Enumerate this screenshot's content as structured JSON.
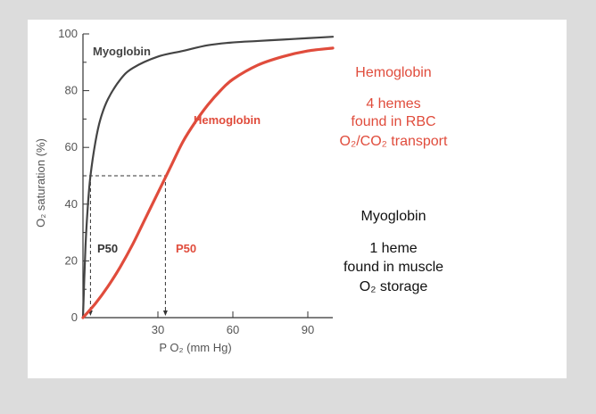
{
  "chart_data": {
    "type": "line",
    "xlabel": "P O₂ (mm Hg)",
    "ylabel": "O₂ saturation (%)",
    "xlim": [
      0,
      100
    ],
    "ylim": [
      0,
      100
    ],
    "x_ticks": [
      30,
      60,
      90
    ],
    "y_ticks": [
      0,
      20,
      40,
      60,
      80,
      100
    ],
    "grid": false,
    "series": [
      {
        "name": "Myoglobin",
        "color": "#444444",
        "x": [
          0,
          1,
          2,
          3,
          5,
          7,
          10,
          15,
          20,
          30,
          40,
          50,
          60,
          70,
          80,
          90,
          100
        ],
        "y": [
          0,
          25,
          40,
          50,
          62,
          70,
          77,
          84,
          88,
          92,
          94,
          96,
          97,
          97.5,
          98,
          98.5,
          99
        ]
      },
      {
        "name": "Hemoglobin",
        "color": "#e04c3c",
        "x": [
          0,
          5,
          10,
          15,
          20,
          25,
          30,
          35,
          40,
          45,
          50,
          55,
          60,
          70,
          80,
          90,
          100
        ],
        "y": [
          0,
          5,
          11,
          18,
          26,
          35,
          44,
          53,
          62,
          69,
          75,
          80,
          84,
          89,
          92,
          94,
          95
        ]
      }
    ],
    "p50": [
      {
        "series": "Myoglobin",
        "x": 3,
        "y": 50,
        "label": "P50"
      },
      {
        "series": "Hemoglobin",
        "x": 33,
        "y": 50,
        "label": "P50"
      }
    ]
  },
  "legend_notes": {
    "hemoglobin": {
      "title": "Hemoglobin",
      "line1": "4 hemes",
      "line2": "found in RBC",
      "line3": "O₂/CO₂ transport",
      "color": "#e04c3c"
    },
    "myoglobin": {
      "title": "Myoglobin",
      "line1": "1 heme",
      "line2": "found in muscle",
      "line3": "O₂ storage",
      "color": "#111111"
    }
  }
}
